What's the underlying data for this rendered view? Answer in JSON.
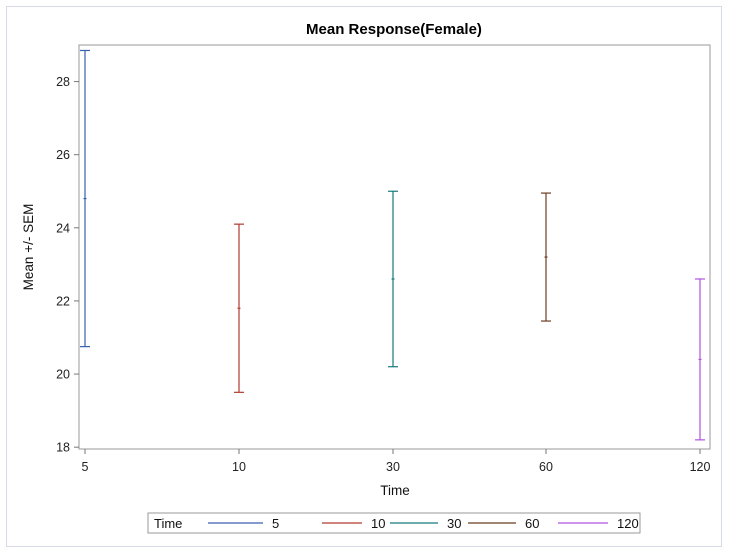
{
  "chart_data": {
    "type": "errorbar",
    "title": "Mean Response(Female)",
    "xlabel": "Time",
    "ylabel": "Mean +/- SEM",
    "categories": [
      "5",
      "10",
      "30",
      "60",
      "120"
    ],
    "y_ticks": [
      18,
      20,
      22,
      24,
      26,
      28
    ],
    "ylim": [
      17.95,
      29.0
    ],
    "grid": false,
    "legend": {
      "title": "Time",
      "placement": "bottom"
    },
    "series": [
      {
        "name": "5",
        "color": "#3a5fb0",
        "mean": 24.8,
        "lower": 20.75,
        "upper": 28.85
      },
      {
        "name": "10",
        "color": "#b03a2e",
        "mean": 21.8,
        "lower": 19.5,
        "upper": 24.1
      },
      {
        "name": "30",
        "color": "#157a7a",
        "mean": 22.6,
        "lower": 20.2,
        "upper": 25.0
      },
      {
        "name": "60",
        "color": "#6b3e22",
        "mean": 23.2,
        "lower": 21.45,
        "upper": 24.95
      },
      {
        "name": "120",
        "color": "#b054e0",
        "mean": 20.4,
        "lower": 18.2,
        "upper": 22.6
      }
    ]
  }
}
